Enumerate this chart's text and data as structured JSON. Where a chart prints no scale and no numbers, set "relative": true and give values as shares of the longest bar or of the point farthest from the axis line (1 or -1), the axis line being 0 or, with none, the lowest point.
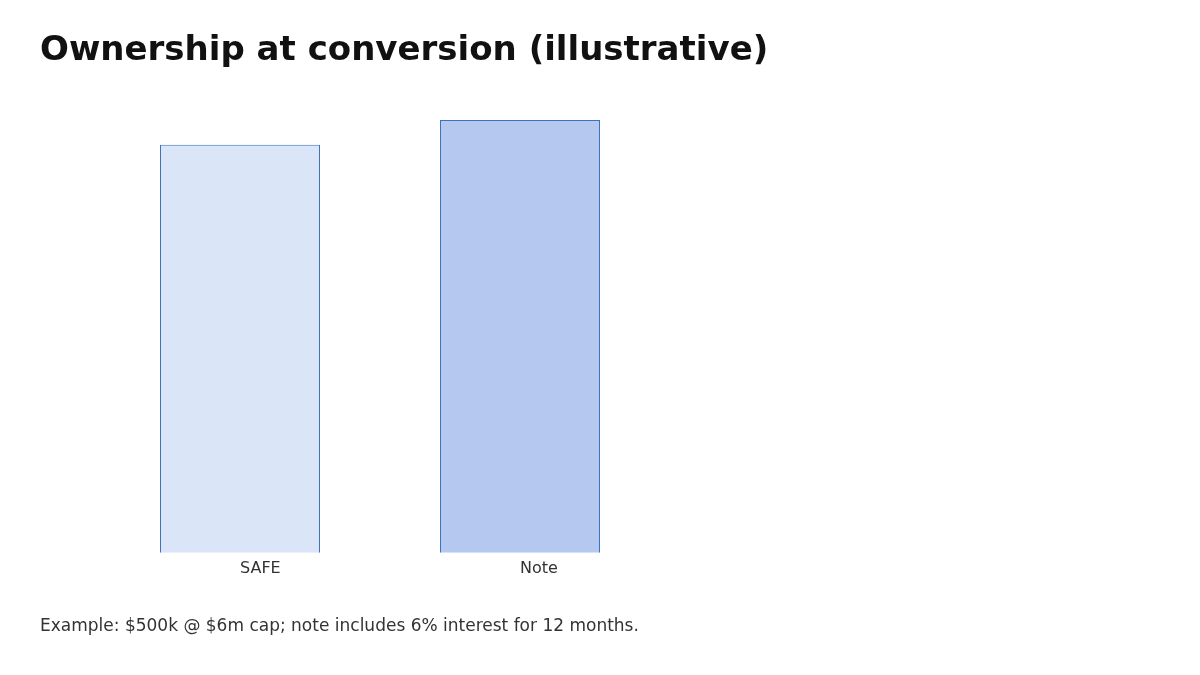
{
  "chart_data": {
    "type": "bar",
    "title": "Ownership at conversion (illustrative)",
    "categories": [
      "SAFE",
      "Note"
    ],
    "values": [
      0.943,
      1
    ],
    "colors": [
      "#dae5f8",
      "#b5c9f0"
    ],
    "relative": true,
    "grid": false,
    "legend": false,
    "annotations": [
      "Example: $500k @ $6m cap; note includes 6% interest for 12 months."
    ]
  }
}
